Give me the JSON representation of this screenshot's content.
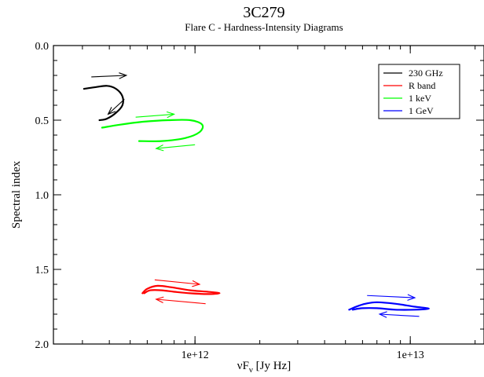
{
  "chart_data": {
    "type": "line",
    "title": "3C279",
    "subtitle": "Flare C - Hardness-Intensity Diagrams",
    "xlabel": "νF",
    "xlabel_sub": "ν",
    "xlabel_unit": " [Jy Hz]",
    "ylabel": "Spectral index",
    "x_scale": "log",
    "xlim": [
      220000000000.0,
      22000000000000.0
    ],
    "ylim": [
      0.0,
      2.0
    ],
    "y_inverted": true,
    "x_ticks": [
      {
        "value": 1000000000000.0,
        "label": "1e+12"
      },
      {
        "value": 10000000000000.0,
        "label": "1e+13"
      }
    ],
    "y_ticks": [
      {
        "value": 0.0,
        "label": "0.0"
      },
      {
        "value": 0.5,
        "label": "0.5"
      },
      {
        "value": 1.0,
        "label": "1.0"
      },
      {
        "value": 1.5,
        "label": "1.5"
      },
      {
        "value": 2.0,
        "label": "2.0"
      }
    ],
    "grid": false,
    "legend_position": "top-right",
    "series": [
      {
        "name": "230 GHz",
        "color": "#000000",
        "points": [
          [
            305000000000.0,
            0.29
          ],
          [
            340000000000.0,
            0.28
          ],
          [
            390000000000.0,
            0.27
          ],
          [
            430000000000.0,
            0.29
          ],
          [
            460000000000.0,
            0.34
          ],
          [
            460000000000.0,
            0.4
          ],
          [
            430000000000.0,
            0.45
          ],
          [
            390000000000.0,
            0.49
          ],
          [
            360000000000.0,
            0.5
          ]
        ],
        "arrows": [
          {
            "from": [
              330000000000.0,
              0.21
            ],
            "to": [
              480000000000.0,
              0.2
            ]
          },
          {
            "from": [
              470000000000.0,
              0.36
            ],
            "to": [
              395000000000.0,
              0.46
            ]
          }
        ]
      },
      {
        "name": "R band",
        "color": "#ff0000",
        "points": [
          [
            570000000000.0,
            1.66
          ],
          [
            600000000000.0,
            1.63
          ],
          [
            670000000000.0,
            1.61
          ],
          [
            780000000000.0,
            1.62
          ],
          [
            950000000000.0,
            1.64
          ],
          [
            1150000000000.0,
            1.65
          ],
          [
            1300000000000.0,
            1.66
          ],
          [
            1150000000000.0,
            1.665
          ],
          [
            950000000000.0,
            1.66
          ],
          [
            800000000000.0,
            1.65
          ],
          [
            700000000000.0,
            1.64
          ],
          [
            620000000000.0,
            1.64
          ],
          [
            580000000000.0,
            1.66
          ]
        ],
        "arrows": [
          {
            "from": [
              650000000000.0,
              1.57
            ],
            "to": [
              1050000000000.0,
              1.6
            ]
          },
          {
            "from": [
              1120000000000.0,
              1.73
            ],
            "to": [
              660000000000.0,
              1.7
            ]
          }
        ]
      },
      {
        "name": "1 keV",
        "color": "#00ff00",
        "points": [
          [
            370000000000.0,
            0.55
          ],
          [
            450000000000.0,
            0.53
          ],
          [
            580000000000.0,
            0.51
          ],
          [
            750000000000.0,
            0.5
          ],
          [
            950000000000.0,
            0.5
          ],
          [
            1080000000000.0,
            0.53
          ],
          [
            1050000000000.0,
            0.58
          ],
          [
            900000000000.0,
            0.62
          ],
          [
            700000000000.0,
            0.64
          ],
          [
            550000000000.0,
            0.64
          ]
        ],
        "arrows": [
          {
            "from": [
              530000000000.0,
              0.48
            ],
            "to": [
              800000000000.0,
              0.46
            ]
          },
          {
            "from": [
              1000000000000.0,
              0.665
            ],
            "to": [
              660000000000.0,
              0.69
            ]
          }
        ]
      },
      {
        "name": "1 GeV",
        "color": "#0000ff",
        "points": [
          [
            5200000000000.0,
            1.77
          ],
          [
            5600000000000.0,
            1.75
          ],
          [
            6200000000000.0,
            1.73
          ],
          [
            7000000000000.0,
            1.72
          ],
          [
            8500000000000.0,
            1.73
          ],
          [
            10500000000000.0,
            1.75
          ],
          [
            12000000000000.0,
            1.76
          ],
          [
            12000000000000.0,
            1.765
          ],
          [
            10500000000000.0,
            1.77
          ],
          [
            8500000000000.0,
            1.77
          ],
          [
            7000000000000.0,
            1.76
          ],
          [
            6000000000000.0,
            1.76
          ],
          [
            5400000000000.0,
            1.77
          ]
        ],
        "arrows": [
          {
            "from": [
              6300000000000.0,
              1.675
            ],
            "to": [
              10500000000000.0,
              1.69
            ]
          },
          {
            "from": [
              11000000000000.0,
              1.815
            ],
            "to": [
              7200000000000.0,
              1.8
            ]
          }
        ]
      }
    ]
  }
}
